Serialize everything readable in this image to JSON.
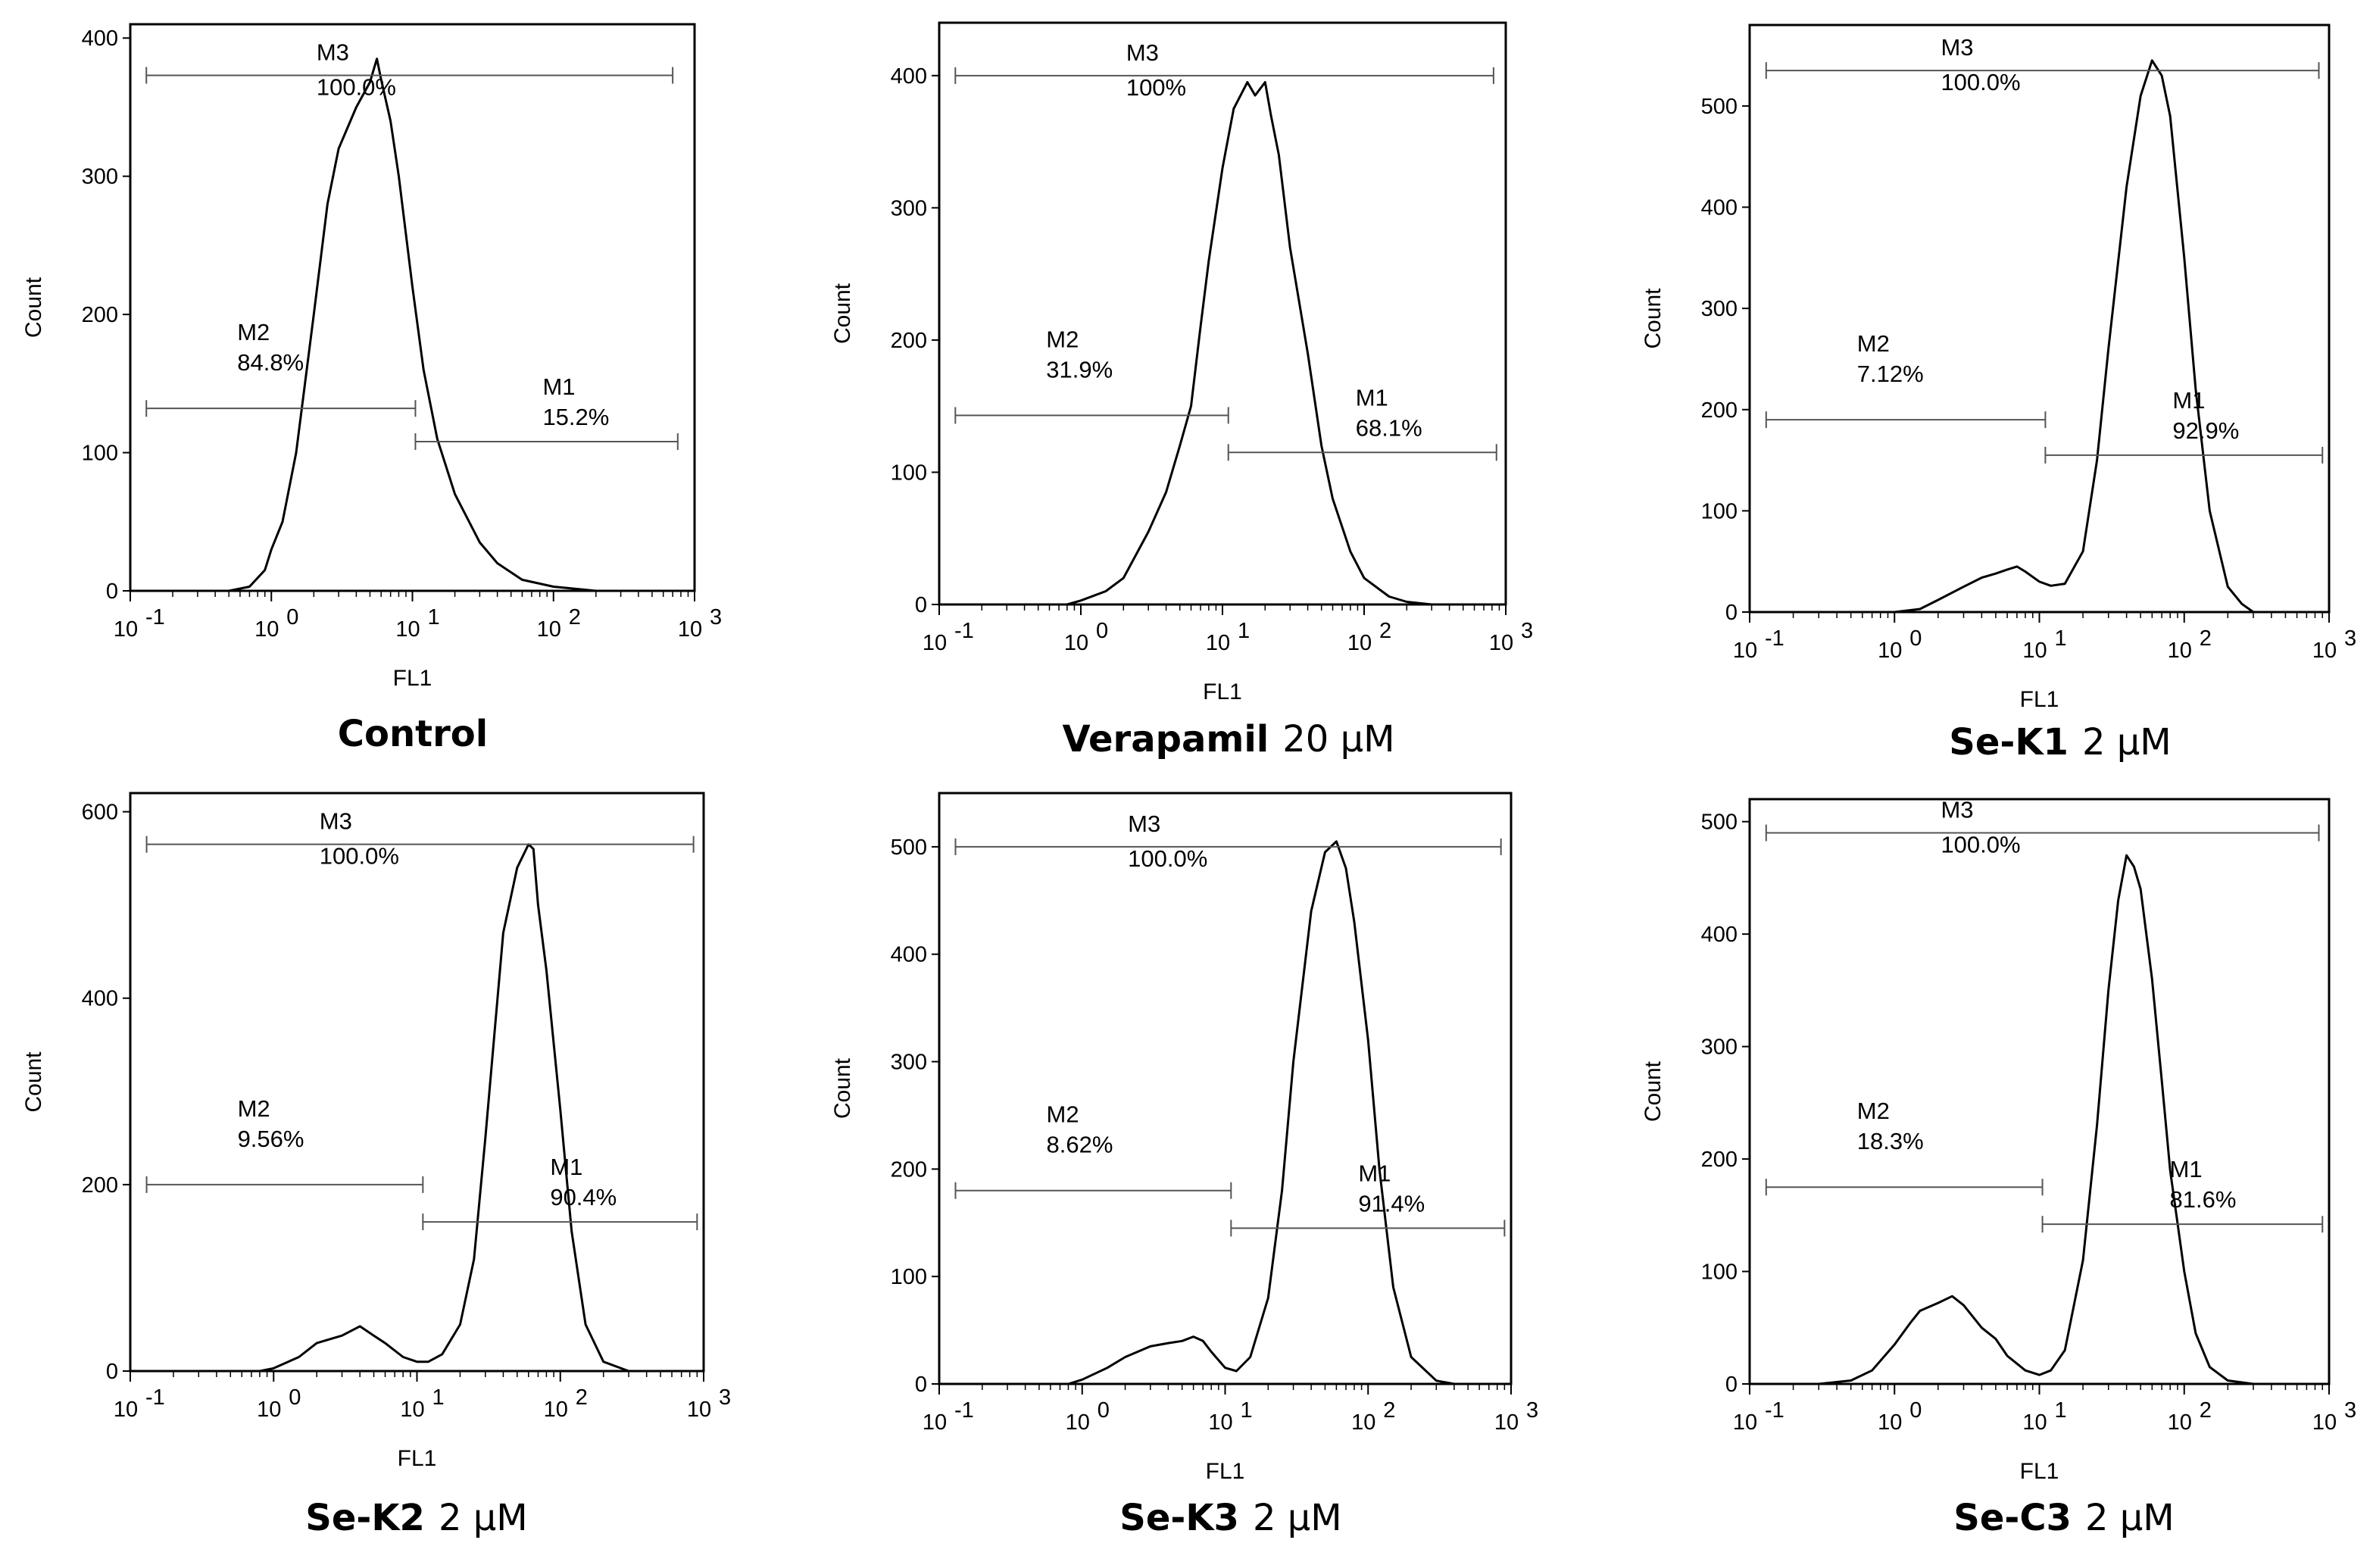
{
  "chart_data": [
    {
      "type": "histogram",
      "caption_name": "Control",
      "caption_dose": "",
      "xlabel": "FL1",
      "ylabel": "Count",
      "xscale": "log",
      "xlim": [
        0.1,
        1000
      ],
      "ylim": [
        0,
        410
      ],
      "yticks": [
        0,
        100,
        200,
        300,
        400
      ],
      "xticks": [
        {
          "base": "10",
          "exp": "-1"
        },
        {
          "base": "10",
          "exp": "0"
        },
        {
          "base": "10",
          "exp": "1"
        },
        {
          "base": "10",
          "exp": "2"
        },
        {
          "base": "10",
          "exp": "3"
        }
      ],
      "curve": [
        [
          0.5,
          0
        ],
        [
          0.7,
          3
        ],
        [
          0.9,
          15
        ],
        [
          1.0,
          30
        ],
        [
          1.2,
          50
        ],
        [
          1.5,
          100
        ],
        [
          2,
          200
        ],
        [
          2.5,
          280
        ],
        [
          3,
          320
        ],
        [
          4,
          350
        ],
        [
          5,
          368
        ],
        [
          5.6,
          385
        ],
        [
          6,
          370
        ],
        [
          7,
          340
        ],
        [
          8,
          300
        ],
        [
          10,
          220
        ],
        [
          12,
          160
        ],
        [
          15,
          110
        ],
        [
          20,
          70
        ],
        [
          30,
          35
        ],
        [
          40,
          20
        ],
        [
          60,
          8
        ],
        [
          100,
          3
        ],
        [
          200,
          0
        ],
        [
          1000,
          0
        ]
      ],
      "gates": [
        {
          "name": "M3",
          "pct": "100.0%",
          "x1": 0.13,
          "x2": 700,
          "y": 373
        },
        {
          "name": "M2",
          "pct": "84.8%",
          "x1": 0.13,
          "x2": 10.5,
          "y": 132
        },
        {
          "name": "M1",
          "pct": "15.2%",
          "x1": 10.5,
          "x2": 760,
          "y": 108
        }
      ]
    },
    {
      "type": "histogram",
      "caption_name": "Verapamil",
      "caption_dose": "20 μM",
      "xlabel": "FL1",
      "ylabel": "Count",
      "xscale": "log",
      "xlim": [
        0.1,
        1000
      ],
      "ylim": [
        0,
        440
      ],
      "yticks": [
        0,
        100,
        200,
        300,
        400
      ],
      "xticks": [
        {
          "base": "10",
          "exp": "-1"
        },
        {
          "base": "10",
          "exp": "0"
        },
        {
          "base": "10",
          "exp": "1"
        },
        {
          "base": "10",
          "exp": "2"
        },
        {
          "base": "10",
          "exp": "3"
        }
      ],
      "curve": [
        [
          0.8,
          0
        ],
        [
          1.0,
          3
        ],
        [
          1.5,
          10
        ],
        [
          2,
          20
        ],
        [
          3,
          55
        ],
        [
          4,
          85
        ],
        [
          5,
          120
        ],
        [
          6,
          150
        ],
        [
          7,
          210
        ],
        [
          8,
          260
        ],
        [
          10,
          330
        ],
        [
          12,
          375
        ],
        [
          15,
          395
        ],
        [
          17,
          385
        ],
        [
          20,
          395
        ],
        [
          22,
          370
        ],
        [
          25,
          340
        ],
        [
          30,
          270
        ],
        [
          40,
          190
        ],
        [
          50,
          120
        ],
        [
          60,
          80
        ],
        [
          80,
          40
        ],
        [
          100,
          20
        ],
        [
          150,
          6
        ],
        [
          200,
          2
        ],
        [
          300,
          0
        ],
        [
          1000,
          0
        ]
      ],
      "gates": [
        {
          "name": "M3",
          "pct": "100%",
          "x1": 0.13,
          "x2": 820,
          "y": 400
        },
        {
          "name": "M2",
          "pct": "31.9%",
          "x1": 0.13,
          "x2": 11,
          "y": 143
        },
        {
          "name": "M1",
          "pct": "68.1%",
          "x1": 11,
          "x2": 860,
          "y": 115
        }
      ]
    },
    {
      "type": "histogram",
      "caption_name": "Se-K1",
      "caption_dose": "2 μM",
      "xlabel": "FL1",
      "ylabel": "Count",
      "xscale": "log",
      "xlim": [
        0.1,
        1000
      ],
      "ylim": [
        0,
        580
      ],
      "yticks": [
        0,
        100,
        200,
        300,
        400,
        500
      ],
      "xticks": [
        {
          "base": "10",
          "exp": "-1"
        },
        {
          "base": "10",
          "exp": "0"
        },
        {
          "base": "10",
          "exp": "1"
        },
        {
          "base": "10",
          "exp": "2"
        },
        {
          "base": "10",
          "exp": "3"
        }
      ],
      "curve": [
        [
          1.0,
          0
        ],
        [
          1.5,
          3
        ],
        [
          2,
          12
        ],
        [
          3,
          25
        ],
        [
          4,
          34
        ],
        [
          5,
          38
        ],
        [
          6,
          42
        ],
        [
          7,
          45
        ],
        [
          8,
          40
        ],
        [
          10,
          30
        ],
        [
          12,
          26
        ],
        [
          15,
          28
        ],
        [
          20,
          60
        ],
        [
          25,
          150
        ],
        [
          30,
          260
        ],
        [
          40,
          420
        ],
        [
          50,
          510
        ],
        [
          60,
          545
        ],
        [
          70,
          530
        ],
        [
          80,
          490
        ],
        [
          100,
          350
        ],
        [
          120,
          220
        ],
        [
          150,
          100
        ],
        [
          200,
          25
        ],
        [
          250,
          8
        ],
        [
          300,
          0
        ],
        [
          1000,
          0
        ]
      ],
      "gates": [
        {
          "name": "M3",
          "pct": "100.0%",
          "x1": 0.13,
          "x2": 850,
          "y": 535
        },
        {
          "name": "M2",
          "pct": "7.12%",
          "x1": 0.13,
          "x2": 11,
          "y": 190
        },
        {
          "name": "M1",
          "pct": "92.9%",
          "x1": 11,
          "x2": 900,
          "y": 155
        }
      ]
    },
    {
      "type": "histogram",
      "caption_name": "Se-K2",
      "caption_dose": "2 μM",
      "xlabel": "FL1",
      "ylabel": "Count",
      "xscale": "log",
      "xlim": [
        0.1,
        1000
      ],
      "ylim": [
        0,
        620
      ],
      "yticks": [
        0,
        200,
        400,
        600
      ],
      "xticks": [
        {
          "base": "10",
          "exp": "-1"
        },
        {
          "base": "10",
          "exp": "0"
        },
        {
          "base": "10",
          "exp": "1"
        },
        {
          "base": "10",
          "exp": "2"
        },
        {
          "base": "10",
          "exp": "3"
        }
      ],
      "curve": [
        [
          0.8,
          0
        ],
        [
          1.0,
          3
        ],
        [
          1.5,
          15
        ],
        [
          2,
          30
        ],
        [
          3,
          38
        ],
        [
          4,
          48
        ],
        [
          5,
          38
        ],
        [
          6,
          30
        ],
        [
          8,
          15
        ],
        [
          10,
          10
        ],
        [
          12,
          10
        ],
        [
          15,
          18
        ],
        [
          20,
          50
        ],
        [
          25,
          120
        ],
        [
          30,
          250
        ],
        [
          40,
          470
        ],
        [
          50,
          540
        ],
        [
          60,
          565
        ],
        [
          65,
          560
        ],
        [
          70,
          500
        ],
        [
          80,
          430
        ],
        [
          100,
          280
        ],
        [
          120,
          150
        ],
        [
          150,
          50
        ],
        [
          200,
          10
        ],
        [
          300,
          0
        ],
        [
          1000,
          0
        ]
      ],
      "gates": [
        {
          "name": "M3",
          "pct": "100.0%",
          "x1": 0.13,
          "x2": 850,
          "y": 565
        },
        {
          "name": "M2",
          "pct": "9.56%",
          "x1": 0.13,
          "x2": 11,
          "y": 200
        },
        {
          "name": "M1",
          "pct": "90.4%",
          "x1": 11,
          "x2": 900,
          "y": 160
        }
      ]
    },
    {
      "type": "histogram",
      "caption_name": "Se-K3",
      "caption_dose": "2 μM",
      "xlabel": "FL1",
      "ylabel": "Count",
      "xscale": "log",
      "xlim": [
        0.1,
        1000
      ],
      "ylim": [
        0,
        550
      ],
      "yticks": [
        0,
        100,
        200,
        300,
        400,
        500
      ],
      "xticks": [
        {
          "base": "10",
          "exp": "-1"
        },
        {
          "base": "10",
          "exp": "0"
        },
        {
          "base": "10",
          "exp": "1"
        },
        {
          "base": "10",
          "exp": "2"
        },
        {
          "base": "10",
          "exp": "3"
        }
      ],
      "curve": [
        [
          0.8,
          0
        ],
        [
          1.0,
          4
        ],
        [
          1.5,
          15
        ],
        [
          2,
          25
        ],
        [
          3,
          35
        ],
        [
          4,
          38
        ],
        [
          5,
          40
        ],
        [
          6,
          44
        ],
        [
          7,
          40
        ],
        [
          8,
          30
        ],
        [
          10,
          15
        ],
        [
          12,
          12
        ],
        [
          15,
          25
        ],
        [
          20,
          80
        ],
        [
          25,
          180
        ],
        [
          30,
          300
        ],
        [
          40,
          440
        ],
        [
          50,
          495
        ],
        [
          60,
          505
        ],
        [
          70,
          480
        ],
        [
          80,
          430
        ],
        [
          100,
          320
        ],
        [
          120,
          200
        ],
        [
          150,
          90
        ],
        [
          200,
          25
        ],
        [
          300,
          3
        ],
        [
          400,
          0
        ],
        [
          1000,
          0
        ]
      ],
      "gates": [
        {
          "name": "M3",
          "pct": "100.0%",
          "x1": 0.13,
          "x2": 850,
          "y": 500
        },
        {
          "name": "M2",
          "pct": "8.62%",
          "x1": 0.13,
          "x2": 11,
          "y": 180
        },
        {
          "name": "M1",
          "pct": "91.4%",
          "x1": 11,
          "x2": 900,
          "y": 145
        }
      ]
    },
    {
      "type": "histogram",
      "caption_name": "Se-C3",
      "caption_dose": "2 μM",
      "xlabel": "FL1",
      "ylabel": "Count",
      "xscale": "log",
      "xlim": [
        0.1,
        1000
      ],
      "ylim": [
        0,
        520
      ],
      "yticks": [
        0,
        100,
        200,
        300,
        400,
        500
      ],
      "xticks": [
        {
          "base": "10",
          "exp": "-1"
        },
        {
          "base": "10",
          "exp": "0"
        },
        {
          "base": "10",
          "exp": "1"
        },
        {
          "base": "10",
          "exp": "2"
        },
        {
          "base": "10",
          "exp": "3"
        }
      ],
      "curve": [
        [
          0.3,
          0
        ],
        [
          0.5,
          3
        ],
        [
          0.7,
          12
        ],
        [
          1.0,
          35
        ],
        [
          1.3,
          55
        ],
        [
          1.5,
          65
        ],
        [
          2,
          72
        ],
        [
          2.5,
          78
        ],
        [
          3,
          70
        ],
        [
          4,
          50
        ],
        [
          5,
          40
        ],
        [
          6,
          25
        ],
        [
          8,
          12
        ],
        [
          10,
          8
        ],
        [
          12,
          12
        ],
        [
          15,
          30
        ],
        [
          20,
          110
        ],
        [
          25,
          230
        ],
        [
          30,
          350
        ],
        [
          35,
          430
        ],
        [
          40,
          470
        ],
        [
          45,
          460
        ],
        [
          50,
          440
        ],
        [
          60,
          360
        ],
        [
          70,
          270
        ],
        [
          80,
          190
        ],
        [
          100,
          100
        ],
        [
          120,
          45
        ],
        [
          150,
          15
        ],
        [
          200,
          3
        ],
        [
          300,
          0
        ],
        [
          1000,
          0
        ]
      ],
      "gates": [
        {
          "name": "M3",
          "pct": "100.0%",
          "x1": 0.13,
          "x2": 850,
          "y": 490
        },
        {
          "name": "M2",
          "pct": "18.3%",
          "x1": 0.13,
          "x2": 10.5,
          "y": 175
        },
        {
          "name": "M1",
          "pct": "81.6%",
          "x1": 10.5,
          "x2": 900,
          "y": 142
        }
      ]
    }
  ]
}
